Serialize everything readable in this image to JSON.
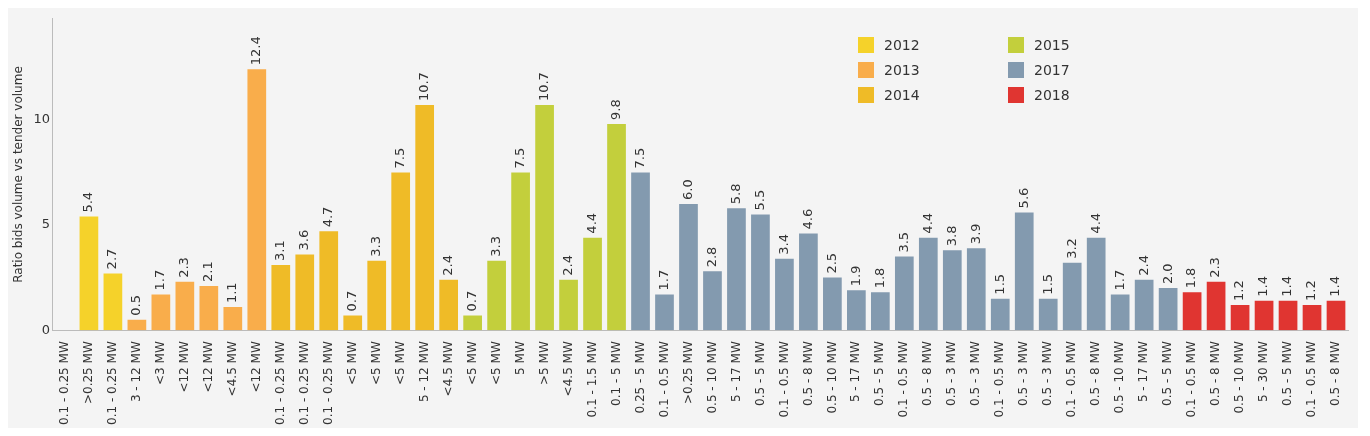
{
  "chart_data": {
    "type": "bar",
    "ylabel": "Ratio bids volume vs tender volume",
    "categories": [
      "0.1 - 0.25 MW",
      ">0.25 MW",
      "0.1 - 0.25 MW",
      "3 - 12 MW",
      "<3 MW",
      "<12 MW",
      "<12 MW",
      "<4.5 MW",
      "<12 MW",
      "0.1 - 0.25 MW",
      "0.1 - 0.25 MW",
      "0.1 - 0.25 MW",
      "<5 MW",
      "<5 MW",
      "<5 MW",
      "5 - 12 MW",
      "<4.5 MW",
      "<5 MW",
      "<5 MW",
      "5 MW",
      ">5 MW",
      "<4.5 MW",
      "0.1 - 1.5 MW",
      "0.1 - 5 MW",
      "0.25 - 5 MW",
      "0.1 - 0.5 MW",
      ">0.25 MW",
      "0.5 - 10 MW",
      "5 - 17 MW",
      "0.5 - 5 MW",
      "0.1 - 0.5 MW",
      "0.5 - 8 MW",
      "0.5 - 10 MW",
      "5 - 17 MW",
      "0.5 - 5 MW",
      "0.1 - 0.5 MW",
      "0.5 - 8 MW",
      "0.5 - 3 MW",
      "0.5 - 3 MW",
      "0.1 - 0.5 MW",
      "0.5 - 3 MW",
      "0.5 - 3 MW",
      "0.1 - 0.5 MW",
      "0.5 - 8 MW",
      "0.5 - 10 MW",
      "5 - 17 MW",
      "0.5 - 5 MW",
      "0.1 - 0.5 MW",
      "0.5 - 8 MW",
      "0.5 - 10 MW",
      "5 - 30 MW",
      "0.5 - 5 MW",
      "0.1 - 0.5 MW",
      "0.5 - 8 MW"
    ],
    "series": [
      {
        "name": "2012",
        "color": "#f5d22a",
        "values": [
          null,
          5.4,
          2.7,
          null,
          null,
          null,
          null,
          null,
          null,
          null,
          null,
          null,
          null,
          null,
          null,
          null,
          null,
          null,
          null,
          null,
          null,
          null,
          null,
          null,
          null,
          null,
          null,
          null,
          null,
          null,
          null,
          null,
          null,
          null,
          null,
          null,
          null,
          null,
          null,
          null,
          null,
          null,
          null,
          null,
          null,
          null,
          null,
          null,
          null,
          null,
          null,
          null,
          null,
          null
        ],
        "value_labels": [
          null,
          "5.4",
          "2.7",
          null,
          null,
          null,
          null,
          null,
          null,
          null,
          null,
          null,
          null,
          null,
          null,
          null,
          null,
          null,
          null,
          null,
          null,
          null,
          null,
          null,
          null,
          null,
          null,
          null,
          null,
          null,
          null,
          null,
          null,
          null,
          null,
          null,
          null,
          null,
          null,
          null,
          null,
          null,
          null,
          null,
          null,
          null,
          null,
          null,
          null,
          null,
          null,
          null,
          null,
          null
        ]
      },
      {
        "name": "2013",
        "color": "#f9ad4b",
        "values": [
          null,
          null,
          null,
          0.5,
          1.7,
          2.3,
          2.1,
          1.1,
          12.4,
          null,
          null,
          null,
          null,
          null,
          null,
          null,
          null,
          null,
          null,
          null,
          null,
          null,
          null,
          null,
          null,
          null,
          null,
          null,
          null,
          null,
          null,
          null,
          null,
          null,
          null,
          null,
          null,
          null,
          null,
          null,
          null,
          null,
          null,
          null,
          null,
          null,
          null,
          null,
          null,
          null,
          null,
          null,
          null,
          null
        ],
        "value_labels": [
          null,
          null,
          null,
          "0.5",
          "1.7",
          "2.3",
          "2.1",
          "1.1",
          "12.4",
          null,
          null,
          null,
          null,
          null,
          null,
          null,
          null,
          null,
          null,
          null,
          null,
          null,
          null,
          null,
          null,
          null,
          null,
          null,
          null,
          null,
          null,
          null,
          null,
          null,
          null,
          null,
          null,
          null,
          null,
          null,
          null,
          null,
          null,
          null,
          null,
          null,
          null,
          null,
          null,
          null,
          null,
          null,
          null,
          null
        ]
      },
      {
        "name": "2014",
        "color": "#efbb27",
        "values": [
          null,
          null,
          null,
          null,
          null,
          null,
          null,
          null,
          null,
          3.1,
          3.6,
          4.7,
          0.7,
          3.3,
          7.5,
          10.7,
          2.4,
          null,
          null,
          null,
          null,
          null,
          null,
          null,
          null,
          null,
          null,
          null,
          null,
          null,
          null,
          null,
          null,
          null,
          null,
          null,
          null,
          null,
          null,
          null,
          null,
          null,
          null,
          null,
          null,
          null,
          null,
          null,
          null,
          null,
          null,
          null,
          null,
          null
        ],
        "value_labels": [
          null,
          null,
          null,
          null,
          null,
          null,
          null,
          null,
          null,
          "3.1",
          "3.6",
          "4.7",
          "0.7",
          "3.3",
          "7.5",
          "10.7",
          "2.4",
          null,
          null,
          null,
          null,
          null,
          null,
          null,
          null,
          null,
          null,
          null,
          null,
          null,
          null,
          null,
          null,
          null,
          null,
          null,
          null,
          null,
          null,
          null,
          null,
          null,
          null,
          null,
          null,
          null,
          null,
          null,
          null,
          null,
          null,
          null,
          null,
          null
        ]
      },
      {
        "name": "2015",
        "color": "#c3cf3c",
        "values": [
          null,
          null,
          null,
          null,
          null,
          null,
          null,
          null,
          null,
          null,
          null,
          null,
          null,
          null,
          null,
          null,
          null,
          0.7,
          3.3,
          7.5,
          10.7,
          2.4,
          4.4,
          9.8,
          null,
          null,
          null,
          null,
          null,
          null,
          null,
          null,
          null,
          null,
          null,
          null,
          null,
          null,
          null,
          null,
          null,
          null,
          null,
          null,
          null,
          null,
          null,
          null,
          null,
          null,
          null,
          null,
          null,
          null
        ],
        "value_labels": [
          null,
          null,
          null,
          null,
          null,
          null,
          null,
          null,
          null,
          null,
          null,
          null,
          null,
          null,
          null,
          null,
          null,
          "0.7",
          "3.3",
          "7.5",
          "10.7",
          "2.4",
          "4.4",
          "9.8",
          null,
          null,
          null,
          null,
          null,
          null,
          null,
          null,
          null,
          null,
          null,
          null,
          null,
          null,
          null,
          null,
          null,
          null,
          null,
          null,
          null,
          null,
          null,
          null,
          null,
          null,
          null,
          null,
          null,
          null
        ]
      },
      {
        "name": "2017",
        "color": "#839aaf",
        "values": [
          null,
          null,
          null,
          null,
          null,
          null,
          null,
          null,
          null,
          null,
          null,
          null,
          null,
          null,
          null,
          null,
          null,
          null,
          null,
          null,
          null,
          null,
          null,
          null,
          7.5,
          1.7,
          6.0,
          2.8,
          5.8,
          5.5,
          3.4,
          4.6,
          2.5,
          1.9,
          1.8,
          3.5,
          4.4,
          3.8,
          3.9,
          1.5,
          5.6,
          1.5,
          3.2,
          4.4,
          1.7,
          2.4,
          2.0,
          null,
          null,
          null,
          null,
          null,
          null,
          null
        ],
        "value_labels": [
          null,
          null,
          null,
          null,
          null,
          null,
          null,
          null,
          null,
          null,
          null,
          null,
          null,
          null,
          null,
          null,
          null,
          null,
          null,
          null,
          null,
          null,
          null,
          null,
          "7.5",
          "1.7",
          "6.0",
          "2.8",
          "5.8",
          "5.5",
          "3.4",
          "4.6",
          "2.5",
          "1.9",
          "1.8",
          "3.5",
          "4.4",
          "3.8",
          "3.9",
          "1.5",
          "5.6",
          "1.5",
          "3.2",
          "4.4",
          "1.7",
          "2.4",
          "2.0",
          null,
          null,
          null,
          null,
          null,
          null,
          null
        ]
      },
      {
        "name": "2018",
        "color": "#e03531",
        "values": [
          null,
          null,
          null,
          null,
          null,
          null,
          null,
          null,
          null,
          null,
          null,
          null,
          null,
          null,
          null,
          null,
          null,
          null,
          null,
          null,
          null,
          null,
          null,
          null,
          null,
          null,
          null,
          null,
          null,
          null,
          null,
          null,
          null,
          null,
          null,
          null,
          null,
          null,
          null,
          null,
          null,
          null,
          null,
          null,
          null,
          null,
          null,
          1.8,
          2.3,
          1.2,
          1.4,
          1.4,
          1.2,
          1.4
        ],
        "value_labels": [
          null,
          null,
          null,
          null,
          null,
          null,
          null,
          null,
          null,
          null,
          null,
          null,
          null,
          null,
          null,
          null,
          null,
          null,
          null,
          null,
          null,
          null,
          null,
          null,
          null,
          null,
          null,
          null,
          null,
          null,
          null,
          null,
          null,
          null,
          null,
          null,
          null,
          null,
          null,
          null,
          null,
          null,
          null,
          null,
          null,
          null,
          null,
          "1.8",
          "2.3",
          "1.2",
          "1.4",
          "1.4",
          "1.2",
          "1.4"
        ]
      }
    ],
    "ylim": [
      0,
      14.8
    ],
    "yticks": [
      0,
      5,
      10
    ],
    "legend": "top"
  }
}
